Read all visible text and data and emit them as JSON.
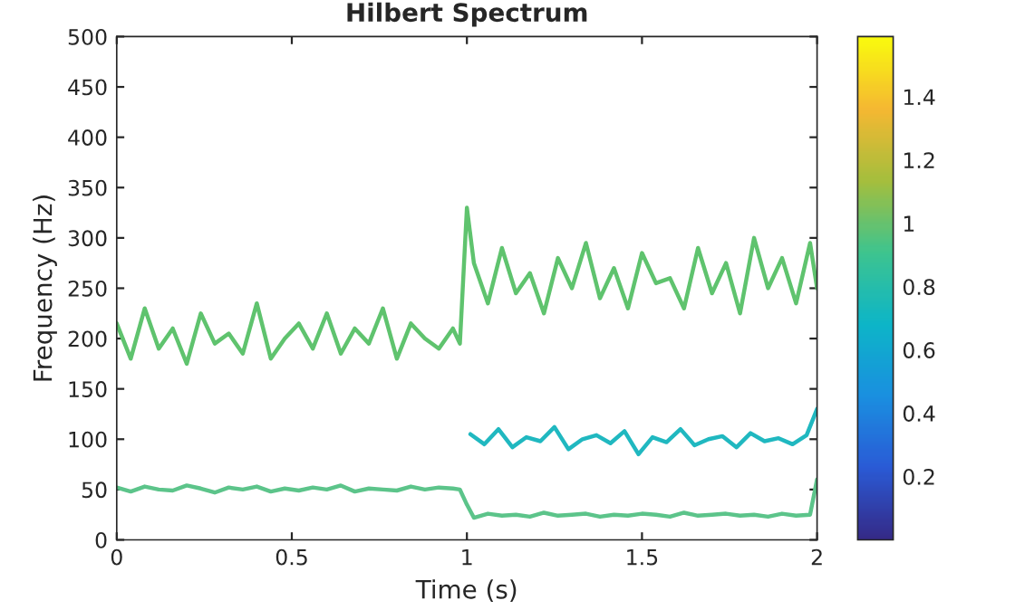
{
  "chart_data": {
    "type": "line",
    "title": "Hilbert Spectrum",
    "xlabel": "Time (s)",
    "ylabel": "Frequency (Hz)",
    "xlim": [
      0,
      2
    ],
    "xticks": [
      0,
      0.5,
      1,
      1.5,
      2
    ],
    "ylim": [
      0,
      500
    ],
    "yticks": [
      0,
      50,
      100,
      150,
      200,
      250,
      300,
      350,
      400,
      450,
      500
    ],
    "clim": [
      0,
      1.59
    ],
    "cticks": [
      0.2,
      0.4,
      0.6,
      0.8,
      1,
      1.2,
      1.4
    ],
    "grid": false,
    "legend": false,
    "series": [
      {
        "color": "#5fc36e",
        "x": [
          0,
          0.04,
          0.08,
          0.12,
          0.16,
          0.2,
          0.24,
          0.28,
          0.32,
          0.36,
          0.4,
          0.44,
          0.48,
          0.52,
          0.56,
          0.6,
          0.64,
          0.68,
          0.72,
          0.76,
          0.8,
          0.84,
          0.88,
          0.92,
          0.96,
          0.98,
          1.0,
          1.02,
          1.06,
          1.1,
          1.14,
          1.18,
          1.22,
          1.26,
          1.3,
          1.34,
          1.38,
          1.42,
          1.46,
          1.5,
          1.54,
          1.58,
          1.62,
          1.66,
          1.7,
          1.74,
          1.78,
          1.82,
          1.86,
          1.9,
          1.94,
          1.98,
          2.0
        ],
        "values": [
          215,
          180,
          230,
          190,
          210,
          175,
          225,
          195,
          205,
          185,
          235,
          180,
          200,
          215,
          190,
          225,
          185,
          210,
          195,
          230,
          180,
          215,
          200,
          190,
          210,
          195,
          330,
          275,
          235,
          290,
          245,
          265,
          225,
          280,
          250,
          295,
          240,
          270,
          230,
          285,
          255,
          260,
          230,
          290,
          245,
          275,
          225,
          300,
          250,
          280,
          235,
          295,
          250
        ]
      },
      {
        "color": "#20b8c0",
        "x": [
          1.01,
          1.05,
          1.09,
          1.13,
          1.17,
          1.21,
          1.25,
          1.29,
          1.33,
          1.37,
          1.41,
          1.45,
          1.49,
          1.53,
          1.57,
          1.61,
          1.65,
          1.69,
          1.73,
          1.77,
          1.81,
          1.85,
          1.89,
          1.93,
          1.97,
          2.0
        ],
        "values": [
          105,
          95,
          110,
          92,
          102,
          98,
          112,
          90,
          100,
          104,
          96,
          108,
          85,
          102,
          97,
          110,
          94,
          100,
          103,
          92,
          106,
          98,
          101,
          95,
          104,
          130
        ]
      },
      {
        "color": "#5cc48a",
        "x": [
          0,
          0.04,
          0.08,
          0.12,
          0.16,
          0.2,
          0.24,
          0.28,
          0.32,
          0.36,
          0.4,
          0.44,
          0.48,
          0.52,
          0.56,
          0.6,
          0.64,
          0.68,
          0.72,
          0.76,
          0.8,
          0.84,
          0.88,
          0.92,
          0.96,
          0.98,
          1.0,
          1.02,
          1.06,
          1.1,
          1.14,
          1.18,
          1.22,
          1.26,
          1.3,
          1.34,
          1.38,
          1.42,
          1.46,
          1.5,
          1.54,
          1.58,
          1.62,
          1.66,
          1.7,
          1.74,
          1.78,
          1.82,
          1.86,
          1.9,
          1.94,
          1.98,
          2.0
        ],
        "values": [
          52,
          48,
          53,
          50,
          49,
          54,
          51,
          47,
          52,
          50,
          53,
          48,
          51,
          49,
          52,
          50,
          54,
          48,
          51,
          50,
          49,
          53,
          50,
          52,
          51,
          50,
          35,
          22,
          26,
          24,
          25,
          23,
          27,
          24,
          25,
          26,
          23,
          25,
          24,
          26,
          25,
          23,
          27,
          24,
          25,
          26,
          24,
          25,
          23,
          26,
          24,
          25,
          60
        ]
      }
    ]
  }
}
